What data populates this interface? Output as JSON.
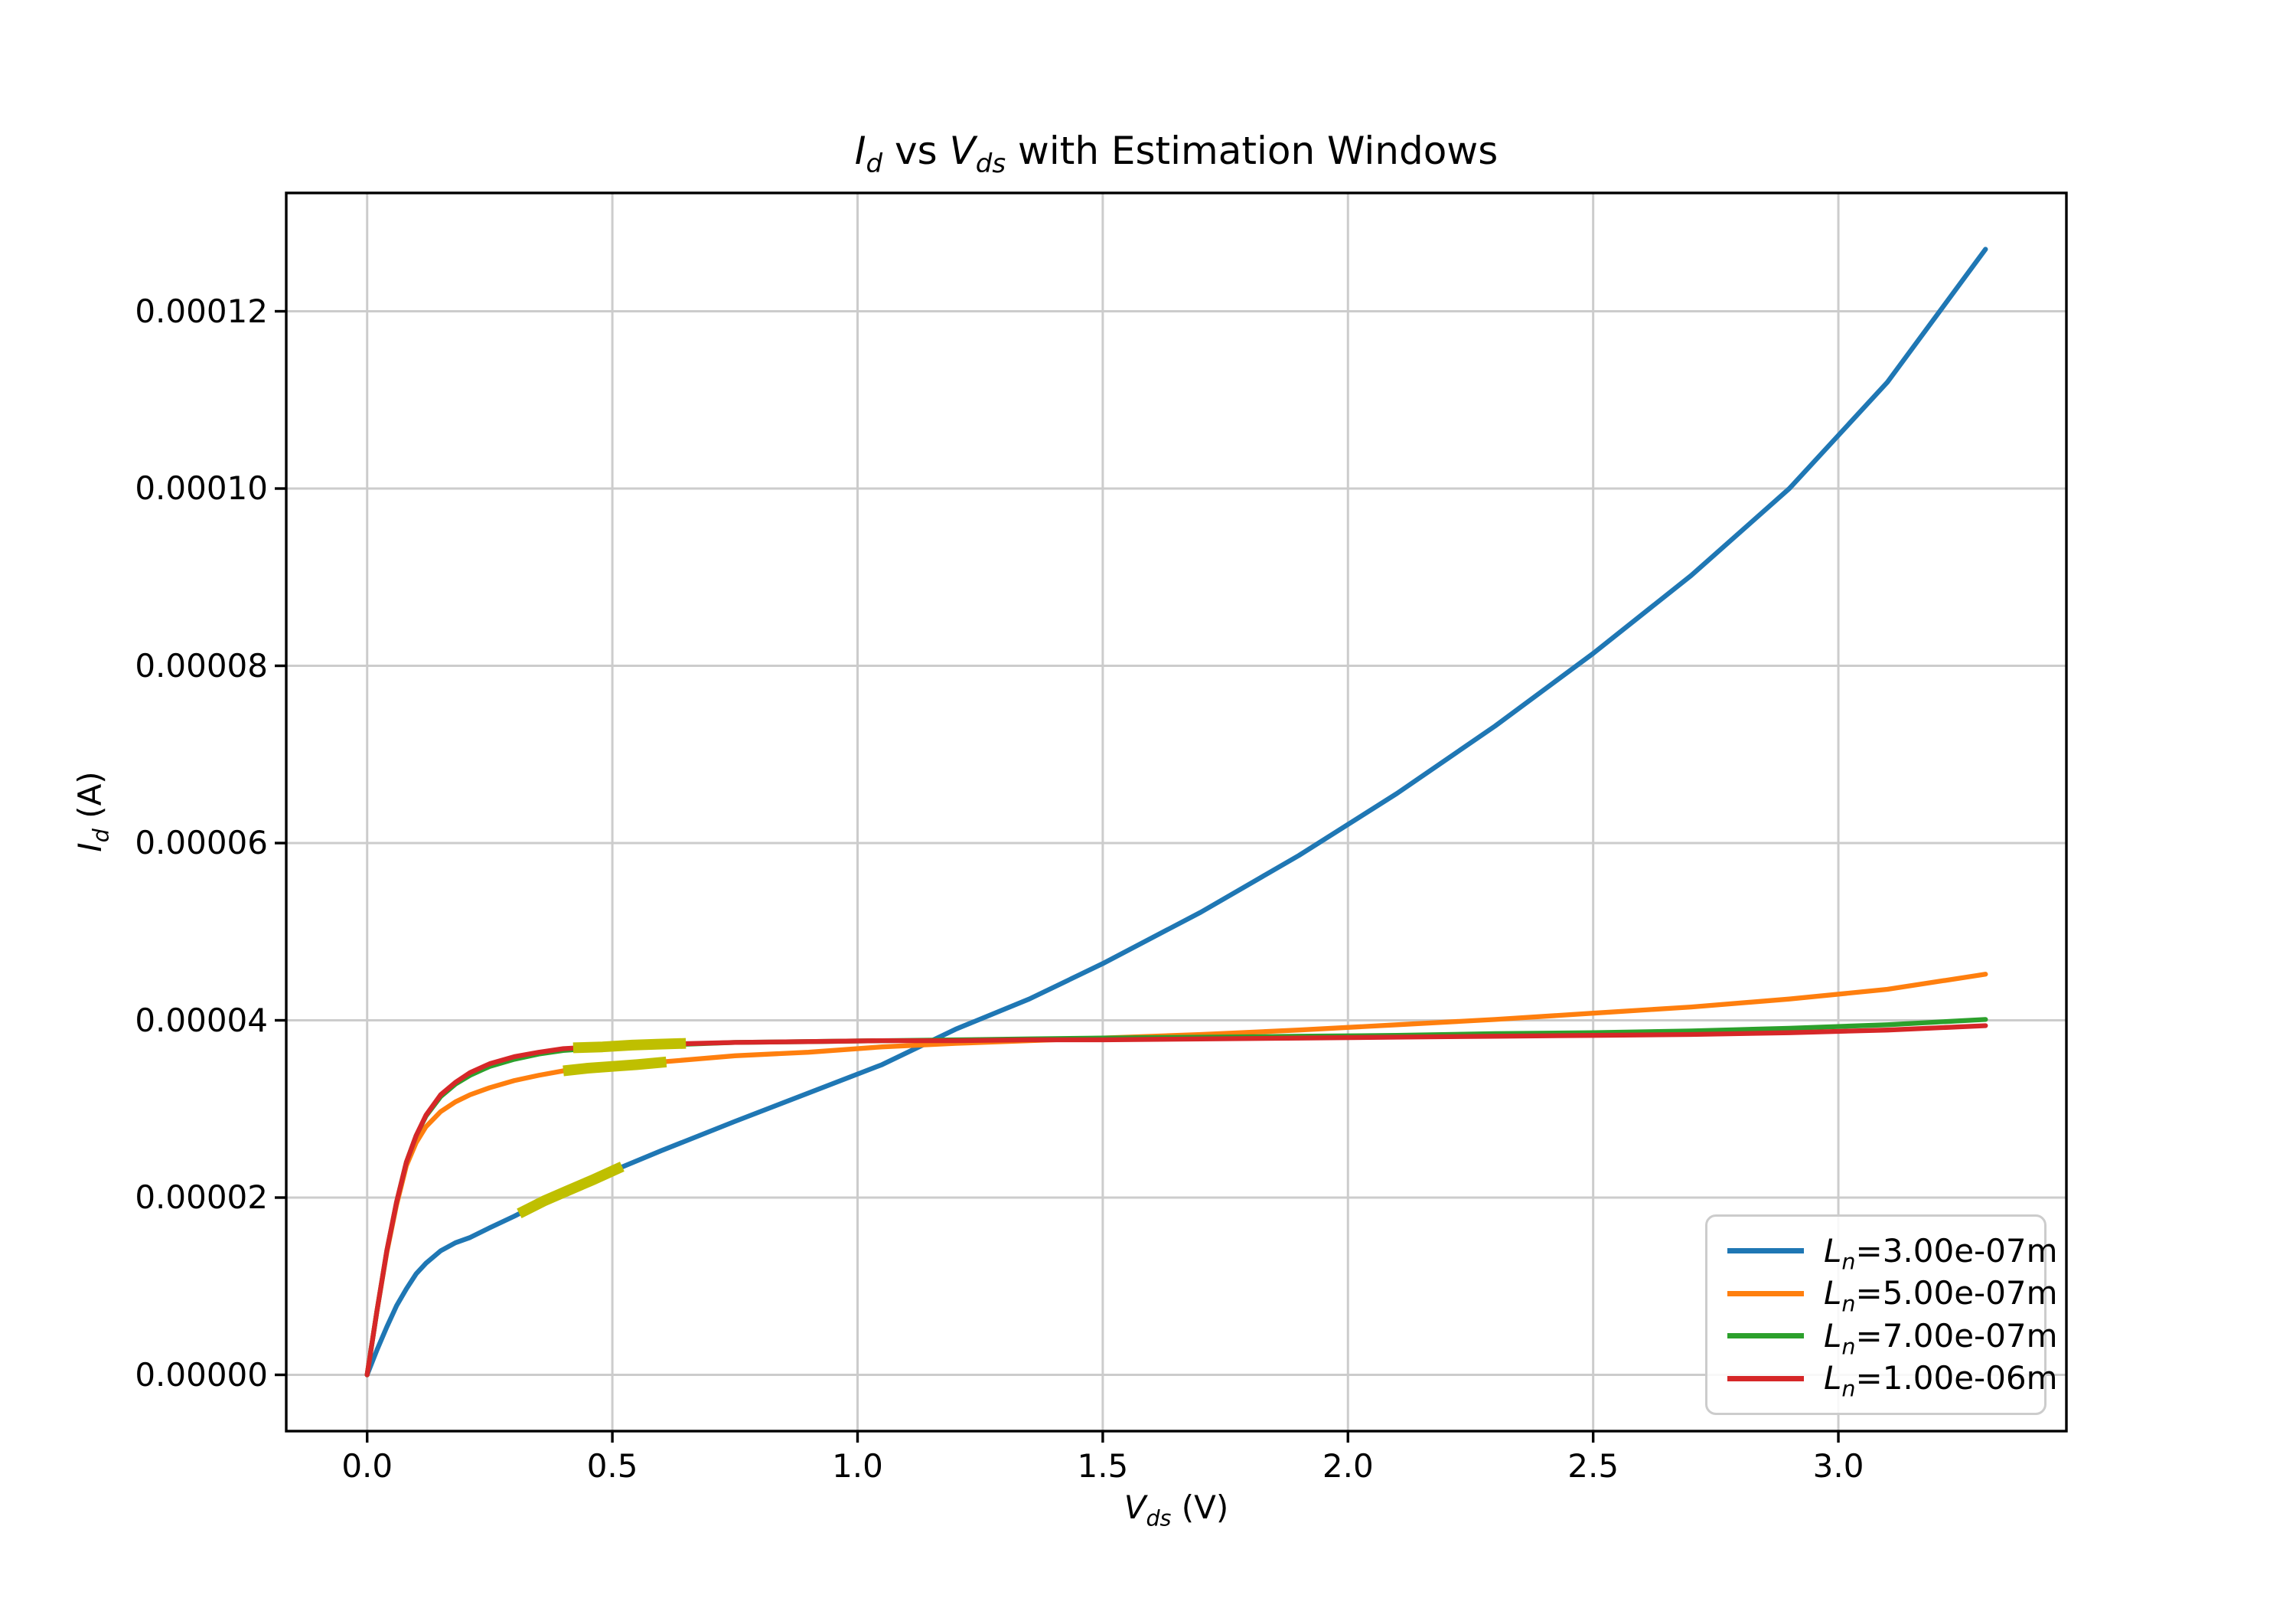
{
  "figure": {
    "background": "#ffffff",
    "spine_color": "#000000",
    "text_color": "#000000"
  },
  "chart_data": {
    "type": "line",
    "title": "I_d vs V_ds with Estimation Windows",
    "xlabel": "V_ds (V)",
    "ylabel": "I_d (A)",
    "xlim": [
      -0.165,
      3.465
    ],
    "ylim": [
      -6.35e-06,
      0.00013335
    ],
    "grid": true,
    "grid_color": "#cccccc",
    "xticks": {
      "values": [
        0.0,
        0.5,
        1.0,
        1.5,
        2.0,
        2.5,
        3.0
      ],
      "labels": [
        "0.0",
        "0.5",
        "1.0",
        "1.5",
        "2.0",
        "2.5",
        "3.0"
      ]
    },
    "yticks": {
      "values": [
        0.0,
        2e-05,
        4e-05,
        6e-05,
        8e-05,
        0.0001,
        0.00012
      ],
      "labels": [
        "0.00000",
        "0.00002",
        "0.00004",
        "0.00006",
        "0.00008",
        "0.00010",
        "0.00012"
      ]
    },
    "x": [
      0,
      0.02,
      0.04,
      0.06,
      0.08,
      0.1,
      0.12,
      0.15,
      0.18,
      0.21,
      0.25,
      0.3,
      0.35,
      0.4,
      0.5,
      0.6,
      0.75,
      0.9,
      1.05,
      1.2,
      1.35,
      1.5,
      1.7,
      1.9,
      2.1,
      2.3,
      2.5,
      2.7,
      2.9,
      3.1,
      3.3
    ],
    "series": [
      {
        "label": "L_n=3.00e-07m",
        "color": "#1f77b4",
        "values": [
          0,
          2.8e-06,
          5.4e-06,
          7.8e-06,
          9.7e-06,
          1.14e-05,
          1.26e-05,
          1.4e-05,
          1.49e-05,
          1.55e-05,
          1.66e-05,
          1.79e-05,
          1.93e-05,
          2.05e-05,
          2.3e-05,
          2.53e-05,
          2.86e-05,
          3.18e-05,
          3.5e-05,
          3.9e-05,
          4.24e-05,
          4.64e-05,
          5.22e-05,
          5.86e-05,
          6.56e-05,
          7.32e-05,
          8.14e-05,
          9.02e-05,
          0.0001,
          0.000112,
          0.000127
        ]
      },
      {
        "label": "L_n=5.00e-07m",
        "color": "#ff7f0e",
        "values": [
          0,
          7.2e-06,
          1.38e-05,
          1.92e-05,
          2.36e-05,
          2.62e-05,
          2.8e-05,
          2.97e-05,
          3.08e-05,
          3.16e-05,
          3.24e-05,
          3.32e-05,
          3.38e-05,
          3.43e-05,
          3.48e-05,
          3.53e-05,
          3.6e-05,
          3.64e-05,
          3.7e-05,
          3.74e-05,
          3.77e-05,
          3.8e-05,
          3.84e-05,
          3.89e-05,
          3.95e-05,
          4.01e-05,
          4.08e-05,
          4.15e-05,
          4.24e-05,
          4.35e-05,
          4.52e-05
        ]
      },
      {
        "label": "L_n=7.00e-07m",
        "color": "#2ca02c",
        "values": [
          0,
          7.2e-06,
          1.4e-05,
          1.95e-05,
          2.4e-05,
          2.7e-05,
          2.92e-05,
          3.14e-05,
          3.28e-05,
          3.38e-05,
          3.48e-05,
          3.56e-05,
          3.62e-05,
          3.66e-05,
          3.7e-05,
          3.72e-05,
          3.75e-05,
          3.76e-05,
          3.77e-05,
          3.78e-05,
          3.79e-05,
          3.8e-05,
          3.81e-05,
          3.82e-05,
          3.83e-05,
          3.85e-05,
          3.86e-05,
          3.88e-05,
          3.91e-05,
          3.95e-05,
          4.01e-05
        ]
      },
      {
        "label": "L_n=1.00e-06m",
        "color": "#d62728",
        "values": [
          0,
          7.2e-06,
          1.4e-05,
          1.95e-05,
          2.4e-05,
          2.7e-05,
          2.93e-05,
          3.16e-05,
          3.3e-05,
          3.41e-05,
          3.51e-05,
          3.59e-05,
          3.64e-05,
          3.68e-05,
          3.71e-05,
          3.73e-05,
          3.75e-05,
          3.76e-05,
          3.77e-05,
          3.77e-05,
          3.78e-05,
          3.78e-05,
          3.79e-05,
          3.8e-05,
          3.81e-05,
          3.82e-05,
          3.83e-05,
          3.84e-05,
          3.86e-05,
          3.89e-05,
          3.94e-05
        ]
      }
    ],
    "estimation_windows": [
      {
        "on_series": "L_n=3.00e-07m",
        "color": "#bfbf00",
        "x": [
          0.31,
          0.36,
          0.41,
          0.46,
          0.52
        ],
        "y": [
          1.82e-05,
          1.96e-05,
          2.08e-05,
          2.2e-05,
          2.35e-05
        ]
      },
      {
        "on_series": "L_n=5.00e-07m",
        "color": "#bfbf00",
        "x": [
          0.4,
          0.45,
          0.5,
          0.55,
          0.61
        ],
        "y": [
          3.43e-05,
          3.46e-05,
          3.48e-05,
          3.5e-05,
          3.53e-05
        ]
      },
      {
        "on_series": "L_n=7.00e-07m",
        "color": "#bfbf00",
        "x": [
          0.42,
          0.48,
          0.54,
          0.59,
          0.65
        ],
        "y": [
          3.69e-05,
          3.7e-05,
          3.72e-05,
          3.73e-05,
          3.74e-05
        ]
      }
    ],
    "legend": {
      "position": "lower right",
      "items": [
        {
          "label": "L_n=3.00e-07m",
          "color": "#1f77b4"
        },
        {
          "label": "L_n=5.00e-07m",
          "color": "#ff7f0e"
        },
        {
          "label": "L_n=7.00e-07m",
          "color": "#2ca02c"
        },
        {
          "label": "L_n=1.00e-06m",
          "color": "#d62728"
        }
      ]
    }
  }
}
